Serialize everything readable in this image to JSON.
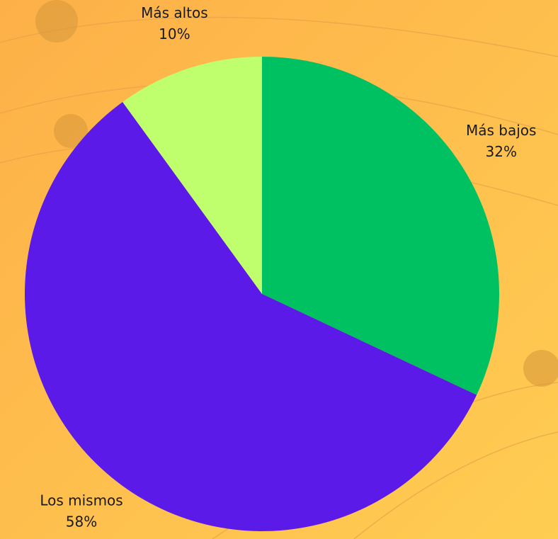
{
  "chart_data": {
    "type": "pie",
    "categories": [
      "Más bajos",
      "Los mismos",
      "Más altos"
    ],
    "values": [
      32,
      58,
      10
    ],
    "value_labels": [
      "32%",
      "58%",
      "10%"
    ],
    "colors": [
      "#00c162",
      "#5b1ae8",
      "#bfff6e"
    ]
  }
}
